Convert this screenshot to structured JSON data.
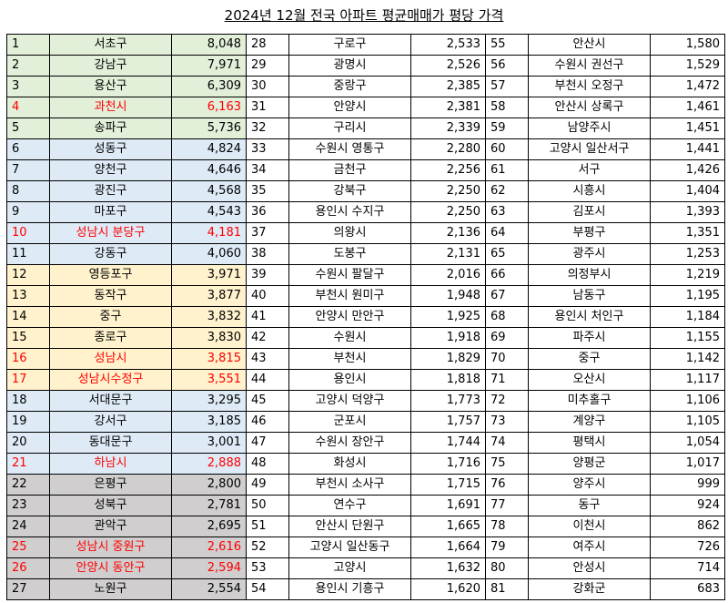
{
  "title": "2024년 12월 전국 아파트 평균매매가 평당 가격",
  "colors": {
    "green": "#e2efd9",
    "blue": "#deebf7",
    "yellow": "#fff2cc",
    "gray": "#d0cece",
    "highlight_text": "#ff0000"
  },
  "rows": [
    {
      "cols": [
        {
          "rank": "1",
          "name": "서초구",
          "value": "8,048",
          "fill": "g1",
          "red": false
        },
        {
          "rank": "28",
          "name": "구로구",
          "value": "2,533",
          "fill": "",
          "red": false
        },
        {
          "rank": "55",
          "name": "안산시",
          "value": "1,580",
          "fill": "",
          "red": false
        }
      ]
    },
    {
      "cols": [
        {
          "rank": "2",
          "name": "강남구",
          "value": "7,971",
          "fill": "g1",
          "red": false
        },
        {
          "rank": "29",
          "name": "광명시",
          "value": "2,526",
          "fill": "",
          "red": false
        },
        {
          "rank": "56",
          "name": "수원시 권선구",
          "value": "1,529",
          "fill": "",
          "red": false
        }
      ]
    },
    {
      "cols": [
        {
          "rank": "3",
          "name": "용산구",
          "value": "6,309",
          "fill": "g1",
          "red": false
        },
        {
          "rank": "30",
          "name": "중랑구",
          "value": "2,385",
          "fill": "",
          "red": false
        },
        {
          "rank": "57",
          "name": "부천시 오정구",
          "value": "1,472",
          "fill": "",
          "red": false
        }
      ]
    },
    {
      "cols": [
        {
          "rank": "4",
          "name": "과천시",
          "value": "6,163",
          "fill": "g1",
          "red": true
        },
        {
          "rank": "31",
          "name": "안양시",
          "value": "2,381",
          "fill": "",
          "red": false
        },
        {
          "rank": "58",
          "name": "안산시 상록구",
          "value": "1,461",
          "fill": "",
          "red": false
        }
      ]
    },
    {
      "cols": [
        {
          "rank": "5",
          "name": "송파구",
          "value": "5,736",
          "fill": "g1",
          "red": false
        },
        {
          "rank": "32",
          "name": "구리시",
          "value": "2,339",
          "fill": "",
          "red": false
        },
        {
          "rank": "59",
          "name": "남양주시",
          "value": "1,451",
          "fill": "",
          "red": false
        }
      ]
    },
    {
      "cols": [
        {
          "rank": "6",
          "name": "성동구",
          "value": "4,824",
          "fill": "g2",
          "red": false
        },
        {
          "rank": "33",
          "name": "수원시 영통구",
          "value": "2,280",
          "fill": "",
          "red": false
        },
        {
          "rank": "60",
          "name": "고양시 일산서구",
          "value": "1,441",
          "fill": "",
          "red": false
        }
      ]
    },
    {
      "cols": [
        {
          "rank": "7",
          "name": "양천구",
          "value": "4,646",
          "fill": "g2",
          "red": false
        },
        {
          "rank": "34",
          "name": "금천구",
          "value": "2,256",
          "fill": "",
          "red": false
        },
        {
          "rank": "61",
          "name": "서구",
          "value": "1,426",
          "fill": "",
          "red": false
        }
      ]
    },
    {
      "cols": [
        {
          "rank": "8",
          "name": "광진구",
          "value": "4,568",
          "fill": "g2",
          "red": false
        },
        {
          "rank": "35",
          "name": "강북구",
          "value": "2,250",
          "fill": "",
          "red": false
        },
        {
          "rank": "62",
          "name": "시흥시",
          "value": "1,404",
          "fill": "",
          "red": false
        }
      ]
    },
    {
      "cols": [
        {
          "rank": "9",
          "name": "마포구",
          "value": "4,543",
          "fill": "g2",
          "red": false
        },
        {
          "rank": "36",
          "name": "용인시 수지구",
          "value": "2,250",
          "fill": "",
          "red": false
        },
        {
          "rank": "63",
          "name": "김포시",
          "value": "1,393",
          "fill": "",
          "red": false
        }
      ]
    },
    {
      "cols": [
        {
          "rank": "10",
          "name": "성남시 분당구",
          "value": "4,181",
          "fill": "g2",
          "red": true
        },
        {
          "rank": "37",
          "name": "의왕시",
          "value": "2,136",
          "fill": "",
          "red": false
        },
        {
          "rank": "64",
          "name": "부평구",
          "value": "1,351",
          "fill": "",
          "red": false
        }
      ]
    },
    {
      "cols": [
        {
          "rank": "11",
          "name": "강동구",
          "value": "4,060",
          "fill": "g2",
          "red": false
        },
        {
          "rank": "38",
          "name": "도봉구",
          "value": "2,131",
          "fill": "",
          "red": false
        },
        {
          "rank": "65",
          "name": "광주시",
          "value": "1,253",
          "fill": "",
          "red": false
        }
      ]
    },
    {
      "cols": [
        {
          "rank": "12",
          "name": "영등포구",
          "value": "3,971",
          "fill": "g3",
          "red": false
        },
        {
          "rank": "39",
          "name": "수원시 팔달구",
          "value": "2,016",
          "fill": "",
          "red": false
        },
        {
          "rank": "66",
          "name": "의정부시",
          "value": "1,219",
          "fill": "",
          "red": false
        }
      ]
    },
    {
      "cols": [
        {
          "rank": "13",
          "name": "동작구",
          "value": "3,877",
          "fill": "g3",
          "red": false
        },
        {
          "rank": "40",
          "name": "부천시 원미구",
          "value": "1,948",
          "fill": "",
          "red": false
        },
        {
          "rank": "67",
          "name": "남동구",
          "value": "1,195",
          "fill": "",
          "red": false
        }
      ]
    },
    {
      "cols": [
        {
          "rank": "14",
          "name": "중구",
          "value": "3,832",
          "fill": "g3",
          "red": false
        },
        {
          "rank": "41",
          "name": "안양시 만안구",
          "value": "1,925",
          "fill": "",
          "red": false
        },
        {
          "rank": "68",
          "name": "용인시 처인구",
          "value": "1,184",
          "fill": "",
          "red": false
        }
      ]
    },
    {
      "cols": [
        {
          "rank": "15",
          "name": "종로구",
          "value": "3,830",
          "fill": "g3",
          "red": false
        },
        {
          "rank": "42",
          "name": "수원시",
          "value": "1,918",
          "fill": "",
          "red": false
        },
        {
          "rank": "69",
          "name": "파주시",
          "value": "1,155",
          "fill": "",
          "red": false
        }
      ]
    },
    {
      "cols": [
        {
          "rank": "16",
          "name": "성남시",
          "value": "3,815",
          "fill": "g3",
          "red": true
        },
        {
          "rank": "43",
          "name": "부천시",
          "value": "1,829",
          "fill": "",
          "red": false
        },
        {
          "rank": "70",
          "name": "중구",
          "value": "1,142",
          "fill": "",
          "red": false
        }
      ]
    },
    {
      "cols": [
        {
          "rank": "17",
          "name": "성남시수정구",
          "value": "3,551",
          "fill": "g3",
          "red": true
        },
        {
          "rank": "44",
          "name": "용인시",
          "value": "1,818",
          "fill": "",
          "red": false
        },
        {
          "rank": "71",
          "name": "오산시",
          "value": "1,117",
          "fill": "",
          "red": false
        }
      ]
    },
    {
      "cols": [
        {
          "rank": "18",
          "name": "서대문구",
          "value": "3,295",
          "fill": "g2",
          "red": false
        },
        {
          "rank": "45",
          "name": "고양시 덕양구",
          "value": "1,773",
          "fill": "",
          "red": false
        },
        {
          "rank": "72",
          "name": "미추홀구",
          "value": "1,106",
          "fill": "",
          "red": false
        }
      ]
    },
    {
      "cols": [
        {
          "rank": "19",
          "name": "강서구",
          "value": "3,185",
          "fill": "g2",
          "red": false
        },
        {
          "rank": "46",
          "name": "군포시",
          "value": "1,757",
          "fill": "",
          "red": false
        },
        {
          "rank": "73",
          "name": "계양구",
          "value": "1,105",
          "fill": "",
          "red": false
        }
      ]
    },
    {
      "cols": [
        {
          "rank": "20",
          "name": "동대문구",
          "value": "3,001",
          "fill": "g2",
          "red": false
        },
        {
          "rank": "47",
          "name": "수원시 장안구",
          "value": "1,744",
          "fill": "",
          "red": false
        },
        {
          "rank": "74",
          "name": "평택시",
          "value": "1,054",
          "fill": "",
          "red": false
        }
      ]
    },
    {
      "cols": [
        {
          "rank": "21",
          "name": "하남시",
          "value": "2,888",
          "fill": "g2",
          "red": true
        },
        {
          "rank": "48",
          "name": "화성시",
          "value": "1,716",
          "fill": "",
          "red": false
        },
        {
          "rank": "75",
          "name": "양평군",
          "value": "1,017",
          "fill": "",
          "red": false
        }
      ]
    },
    {
      "cols": [
        {
          "rank": "22",
          "name": "은평구",
          "value": "2,800",
          "fill": "g4",
          "red": false
        },
        {
          "rank": "49",
          "name": "부천시 소사구",
          "value": "1,715",
          "fill": "",
          "red": false
        },
        {
          "rank": "76",
          "name": "양주시",
          "value": "999",
          "fill": "",
          "red": false
        }
      ]
    },
    {
      "cols": [
        {
          "rank": "23",
          "name": "성북구",
          "value": "2,781",
          "fill": "g4",
          "red": false
        },
        {
          "rank": "50",
          "name": "연수구",
          "value": "1,691",
          "fill": "",
          "red": false
        },
        {
          "rank": "77",
          "name": "동구",
          "value": "924",
          "fill": "",
          "red": false
        }
      ]
    },
    {
      "cols": [
        {
          "rank": "24",
          "name": "관악구",
          "value": "2,695",
          "fill": "g4",
          "red": false
        },
        {
          "rank": "51",
          "name": "안산시 단원구",
          "value": "1,665",
          "fill": "",
          "red": false
        },
        {
          "rank": "78",
          "name": "이천시",
          "value": "862",
          "fill": "",
          "red": false
        }
      ]
    },
    {
      "cols": [
        {
          "rank": "25",
          "name": "성남시 중원구",
          "value": "2,616",
          "fill": "g4",
          "red": true
        },
        {
          "rank": "52",
          "name": "고양시 일산동구",
          "value": "1,664",
          "fill": "",
          "red": false
        },
        {
          "rank": "79",
          "name": "여주시",
          "value": "726",
          "fill": "",
          "red": false
        }
      ]
    },
    {
      "cols": [
        {
          "rank": "26",
          "name": "안양시 동안구",
          "value": "2,594",
          "fill": "g4",
          "red": true
        },
        {
          "rank": "53",
          "name": "고양시",
          "value": "1,632",
          "fill": "",
          "red": false
        },
        {
          "rank": "80",
          "name": "안성시",
          "value": "714",
          "fill": "",
          "red": false
        }
      ]
    },
    {
      "cols": [
        {
          "rank": "27",
          "name": "노원구",
          "value": "2,554",
          "fill": "g4",
          "red": false
        },
        {
          "rank": "54",
          "name": "용인시 기흥구",
          "value": "1,620",
          "fill": "",
          "red": false
        },
        {
          "rank": "81",
          "name": "강화군",
          "value": "683",
          "fill": "",
          "red": false
        }
      ]
    }
  ]
}
